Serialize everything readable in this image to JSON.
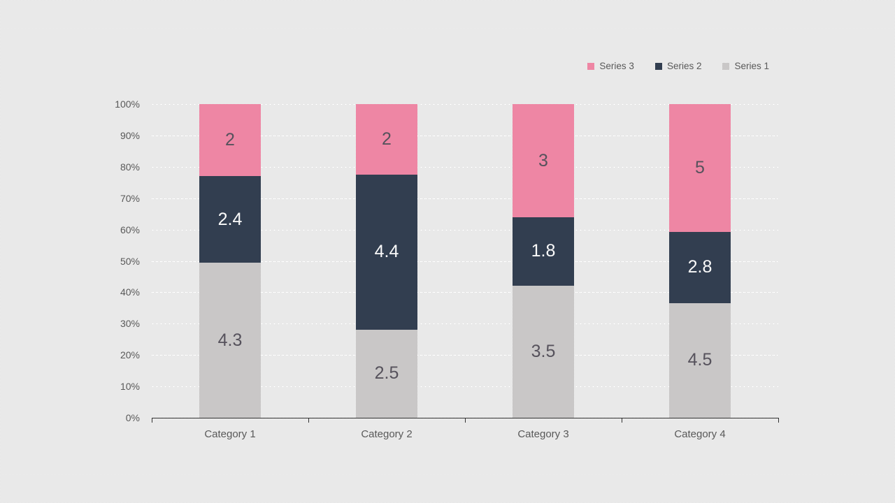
{
  "page": {
    "background_checker_light": "#f6f6f6",
    "background_checker_dark": "#dcdcdc"
  },
  "colors": {
    "axis_text": "#595959",
    "axis_line": "#333333",
    "gridline": "#fdfdfd",
    "data_label_on_dark": "#fafafa",
    "data_label_on_light": "#56525c"
  },
  "chart_data": {
    "type": "bar",
    "subtype": "stacked-100-percent",
    "title": "",
    "categories": [
      "Category 1",
      "Category 2",
      "Category 3",
      "Category 4"
    ],
    "series": [
      {
        "name": "Series 1",
        "color": "#c9c7c7",
        "label_color": "#56525c",
        "values": [
          4.3,
          2.5,
          3.5,
          4.5
        ]
      },
      {
        "name": "Series 2",
        "color": "#323e50",
        "label_color": "#fafafa",
        "values": [
          2.4,
          4.4,
          1.8,
          2.8
        ]
      },
      {
        "name": "Series 3",
        "color": "#ee86a4",
        "label_color": "#56525c",
        "values": [
          2,
          2,
          3,
          5
        ]
      }
    ],
    "y_axis": {
      "min": 0,
      "max": 100,
      "tick_step": 10,
      "tick_labels": [
        "0%",
        "10%",
        "20%",
        "30%",
        "40%",
        "50%",
        "60%",
        "70%",
        "80%",
        "90%",
        "100%"
      ],
      "grid": true
    },
    "legend": {
      "position": "top-right",
      "entries": [
        {
          "label": "Series 3",
          "color": "#ee86a4"
        },
        {
          "label": "Series 2",
          "color": "#323e50"
        },
        {
          "label": "Series 1",
          "color": "#c9c7c7"
        }
      ]
    },
    "data_labels_shown": true
  }
}
